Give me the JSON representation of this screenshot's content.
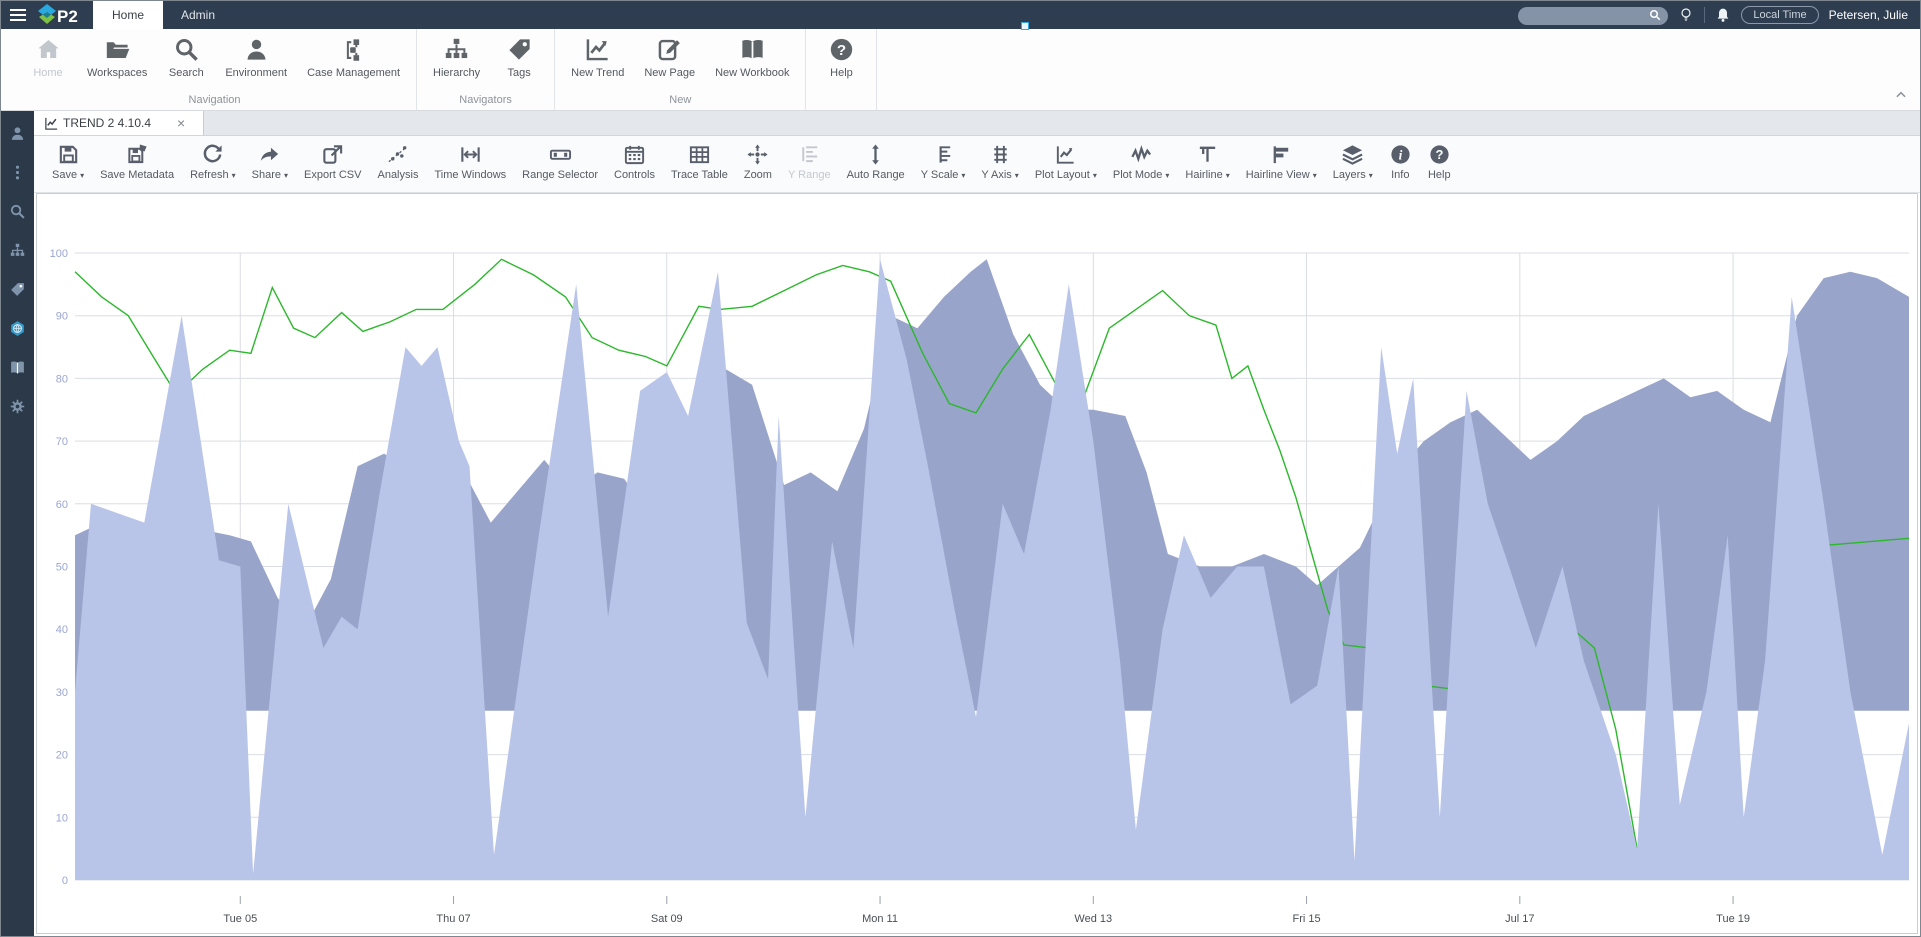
{
  "topbar": {
    "tabs": [
      "Home",
      "Admin"
    ],
    "active_tab": "Home",
    "search": {
      "value": "",
      "placeholder": ""
    },
    "local_time_label": "Local Time",
    "user_name": "Petersen, Julie"
  },
  "ribbon": {
    "groups": [
      {
        "label": "Navigation",
        "items": [
          {
            "label": "Home",
            "icon": "home",
            "disabled": true
          },
          {
            "label": "Workspaces",
            "icon": "folder"
          },
          {
            "label": "Search",
            "icon": "search"
          },
          {
            "label": "Environment",
            "icon": "person"
          },
          {
            "label": "Case Management",
            "icon": "casemgmt"
          }
        ]
      },
      {
        "label": "Navigators",
        "items": [
          {
            "label": "Hierarchy",
            "icon": "hierarchy"
          },
          {
            "label": "Tags",
            "icon": "tag"
          }
        ]
      },
      {
        "label": "New",
        "items": [
          {
            "label": "New Trend",
            "icon": "trend"
          },
          {
            "label": "New Page",
            "icon": "newpage"
          },
          {
            "label": "New Workbook",
            "icon": "book"
          }
        ]
      },
      {
        "label": "",
        "items": [
          {
            "label": "Help",
            "icon": "help"
          }
        ]
      }
    ]
  },
  "sidebar": {
    "icons": [
      "person",
      "kebab",
      "search",
      "hierarchy",
      "tag",
      "hexglobe",
      "book",
      "gear"
    ]
  },
  "document_tab": {
    "title": "TREND 2 4.10.4",
    "close_label": "×"
  },
  "trend_toolbar": {
    "items": [
      {
        "label": "Save",
        "icon": "save",
        "caret": true
      },
      {
        "label": "Save Metadata",
        "icon": "savemeta"
      },
      {
        "label": "Refresh",
        "icon": "refresh",
        "caret": true
      },
      {
        "label": "Share",
        "icon": "share",
        "caret": true
      },
      {
        "label": "Export CSV",
        "icon": "export"
      },
      {
        "label": "Analysis",
        "icon": "analysis"
      },
      {
        "label": "Time Windows",
        "icon": "timewin"
      },
      {
        "label": "Range Selector",
        "icon": "rangesel"
      },
      {
        "label": "Controls",
        "icon": "controls"
      },
      {
        "label": "Trace Table",
        "icon": "tracetable"
      },
      {
        "label": "Zoom",
        "icon": "zoomx"
      },
      {
        "label": "Y Range",
        "icon": "yrange",
        "disabled": true
      },
      {
        "label": "Auto Range",
        "icon": "autorange"
      },
      {
        "label": "Y Scale",
        "icon": "yscale",
        "caret": true
      },
      {
        "label": "Y Axis",
        "icon": "yaxis",
        "caret": true
      },
      {
        "label": "Plot Layout",
        "icon": "plotlayout",
        "caret": true
      },
      {
        "label": "Plot Mode",
        "icon": "plotmode",
        "caret": true
      },
      {
        "label": "Hairline",
        "icon": "hairline",
        "caret": true
      },
      {
        "label": "Hairline View",
        "icon": "hairlineview",
        "caret": true
      },
      {
        "label": "Layers",
        "icon": "layers",
        "caret": true
      },
      {
        "label": "Info",
        "icon": "info"
      },
      {
        "label": "Help",
        "icon": "help"
      }
    ]
  },
  "chart_data": {
    "type": "area",
    "x_axis": {
      "domain": [
        3.45,
        20.65
      ],
      "tick_days": [
        5,
        7,
        9,
        11,
        13,
        15,
        17,
        19
      ],
      "labels": [
        "Tue 05",
        "Thu 07",
        "Sat 09",
        "Mon 11",
        "Wed 13",
        "Fri 15",
        "Jul 17",
        "Tue 19"
      ]
    },
    "y_axis": {
      "min": 0,
      "max": 100,
      "step": 10,
      "ticks": [
        0,
        10,
        20,
        30,
        40,
        50,
        60,
        70,
        80,
        90,
        100
      ]
    },
    "grid": true,
    "legend": "none",
    "series": [
      {
        "name": "band-area",
        "type": "area",
        "color": "#98a4c9",
        "baseline": 27,
        "points": [
          [
            3.45,
            55
          ],
          [
            3.7,
            57
          ],
          [
            4.0,
            56
          ],
          [
            4.3,
            55
          ],
          [
            4.6,
            56
          ],
          [
            4.9,
            55
          ],
          [
            5.1,
            54
          ],
          [
            5.35,
            45
          ],
          [
            5.6,
            40
          ],
          [
            5.85,
            48
          ],
          [
            6.1,
            66
          ],
          [
            6.35,
            68
          ],
          [
            6.6,
            65
          ],
          [
            6.85,
            62
          ],
          [
            7.1,
            65
          ],
          [
            7.35,
            57
          ],
          [
            7.6,
            62
          ],
          [
            7.85,
            67
          ],
          [
            8.1,
            62
          ],
          [
            8.35,
            65
          ],
          [
            8.6,
            64
          ],
          [
            8.85,
            58
          ],
          [
            9.05,
            62
          ],
          [
            9.3,
            80
          ],
          [
            9.55,
            81.5
          ],
          [
            9.8,
            79
          ],
          [
            10.1,
            63
          ],
          [
            10.35,
            65
          ],
          [
            10.6,
            62
          ],
          [
            10.85,
            72
          ],
          [
            11.1,
            90
          ],
          [
            11.35,
            88
          ],
          [
            11.6,
            93
          ],
          [
            11.85,
            97
          ],
          [
            12.0,
            99
          ],
          [
            12.25,
            87
          ],
          [
            12.5,
            79
          ],
          [
            12.75,
            75
          ],
          [
            13.0,
            75
          ],
          [
            13.3,
            74
          ],
          [
            13.5,
            65
          ],
          [
            13.7,
            52
          ],
          [
            14.0,
            50
          ],
          [
            14.3,
            50
          ],
          [
            14.6,
            52
          ],
          [
            14.9,
            50
          ],
          [
            15.1,
            47
          ],
          [
            15.3,
            50
          ],
          [
            15.5,
            53
          ],
          [
            15.7,
            60
          ],
          [
            15.9,
            66
          ],
          [
            16.1,
            70
          ],
          [
            16.35,
            73
          ],
          [
            16.6,
            75
          ],
          [
            16.85,
            71
          ],
          [
            17.1,
            67
          ],
          [
            17.35,
            70
          ],
          [
            17.6,
            74
          ],
          [
            17.85,
            76
          ],
          [
            18.1,
            78
          ],
          [
            18.35,
            80
          ],
          [
            18.6,
            77
          ],
          [
            18.85,
            78
          ],
          [
            19.1,
            75
          ],
          [
            19.35,
            73
          ],
          [
            19.6,
            90
          ],
          [
            19.85,
            96
          ],
          [
            20.1,
            97
          ],
          [
            20.35,
            96
          ],
          [
            20.65,
            93
          ]
        ]
      },
      {
        "name": "green-line",
        "type": "line",
        "color": "#2cb82c",
        "width": 1.4,
        "segments": [
          [
            [
              3.45,
              97
            ],
            [
              3.7,
              93
            ],
            [
              3.95,
              90
            ],
            [
              4.2,
              83
            ],
            [
              4.4,
              77.5
            ],
            [
              4.65,
              81.5
            ],
            [
              4.9,
              84.5
            ],
            [
              5.1,
              84
            ],
            [
              5.3,
              94.5
            ],
            [
              5.5,
              88
            ],
            [
              5.7,
              86.5
            ],
            [
              5.95,
              90.5
            ],
            [
              6.15,
              87.5
            ],
            [
              6.4,
              89
            ],
            [
              6.65,
              91
            ],
            [
              6.9,
              91
            ],
            [
              7.2,
              95
            ],
            [
              7.45,
              99
            ],
            [
              7.75,
              96.5
            ],
            [
              8.05,
              93
            ],
            [
              8.3,
              86.5
            ],
            [
              8.55,
              84.5
            ],
            [
              8.8,
              83.5
            ],
            [
              9.0,
              82
            ],
            [
              9.3,
              91.5
            ],
            [
              9.5,
              91
            ],
            [
              9.8,
              91.5
            ],
            [
              10.1,
              94
            ],
            [
              10.4,
              96.5
            ],
            [
              10.65,
              98
            ],
            [
              10.9,
              97
            ],
            [
              11.1,
              95.5
            ],
            [
              11.4,
              84
            ],
            [
              11.65,
              76
            ],
            [
              11.9,
              74.5
            ],
            [
              12.15,
              81.5
            ],
            [
              12.4,
              87
            ],
            [
              12.65,
              79
            ],
            [
              12.9,
              76.5
            ],
            [
              13.15,
              88
            ],
            [
              13.4,
              91
            ],
            [
              13.65,
              94
            ],
            [
              13.9,
              90
            ],
            [
              14.15,
              88.5
            ],
            [
              14.3,
              80
            ],
            [
              14.45,
              82
            ],
            [
              14.6,
              75
            ],
            [
              14.75,
              68.5
            ],
            [
              14.9,
              61
            ],
            [
              15.05,
              52
            ],
            [
              15.2,
              43
            ],
            [
              15.35,
              37.5
            ],
            [
              15.6,
              37
            ],
            [
              15.85,
              31.5
            ],
            [
              16.1,
              31
            ],
            [
              16.35,
              30.5
            ],
            [
              16.6,
              40.5
            ],
            [
              16.85,
              37
            ],
            [
              17.1,
              31
            ],
            [
              17.3,
              31.5
            ],
            [
              17.5,
              40
            ],
            [
              17.7,
              37
            ],
            [
              17.9,
              24
            ],
            [
              18.1,
              5
            ],
            [
              18.2,
              5.5
            ]
          ],
          [
            [
              19.6,
              53
            ],
            [
              20.65,
              54.5
            ]
          ]
        ]
      },
      {
        "name": "spiky-area",
        "type": "area",
        "color": "#b9c4e9",
        "baseline": 0,
        "points": [
          [
            3.45,
            30
          ],
          [
            3.6,
            60
          ],
          [
            4.1,
            57
          ],
          [
            4.45,
            90
          ],
          [
            4.8,
            51
          ],
          [
            5.0,
            50
          ],
          [
            5.12,
            1
          ],
          [
            5.45,
            60
          ],
          [
            5.78,
            37
          ],
          [
            5.95,
            42
          ],
          [
            6.1,
            40
          ],
          [
            6.3,
            61
          ],
          [
            6.55,
            85
          ],
          [
            6.7,
            82
          ],
          [
            6.85,
            85
          ],
          [
            7.05,
            70
          ],
          [
            7.15,
            66
          ],
          [
            7.38,
            4
          ],
          [
            7.8,
            55
          ],
          [
            8.15,
            95
          ],
          [
            8.45,
            42
          ],
          [
            8.75,
            78
          ],
          [
            9.0,
            81
          ],
          [
            9.2,
            74
          ],
          [
            9.48,
            97
          ],
          [
            9.75,
            41
          ],
          [
            9.95,
            32
          ],
          [
            10.05,
            74
          ],
          [
            10.3,
            10
          ],
          [
            10.55,
            54
          ],
          [
            10.75,
            37
          ],
          [
            11.0,
            99
          ],
          [
            11.25,
            83
          ],
          [
            11.45,
            66
          ],
          [
            11.7,
            43
          ],
          [
            11.9,
            26
          ],
          [
            12.15,
            60
          ],
          [
            12.35,
            52
          ],
          [
            12.6,
            75
          ],
          [
            12.77,
            95
          ],
          [
            13.0,
            70
          ],
          [
            13.25,
            35
          ],
          [
            13.4,
            8
          ],
          [
            13.65,
            40
          ],
          [
            13.85,
            55
          ],
          [
            14.1,
            45
          ],
          [
            14.35,
            50
          ],
          [
            14.6,
            50
          ],
          [
            14.85,
            28
          ],
          [
            15.1,
            31
          ],
          [
            15.3,
            50
          ],
          [
            15.45,
            3
          ],
          [
            15.7,
            85
          ],
          [
            15.85,
            68
          ],
          [
            16.0,
            80
          ],
          [
            16.25,
            10
          ],
          [
            16.5,
            78
          ],
          [
            16.7,
            60
          ],
          [
            16.9,
            50
          ],
          [
            17.15,
            37
          ],
          [
            17.4,
            50
          ],
          [
            17.6,
            35
          ],
          [
            17.9,
            20
          ],
          [
            18.1,
            5
          ],
          [
            18.3,
            60
          ],
          [
            18.5,
            12
          ],
          [
            18.75,
            30
          ],
          [
            18.95,
            55
          ],
          [
            19.1,
            10
          ],
          [
            19.3,
            35
          ],
          [
            19.55,
            93
          ],
          [
            19.85,
            60
          ],
          [
            20.1,
            30
          ],
          [
            20.4,
            4
          ],
          [
            20.65,
            25
          ]
        ]
      }
    ]
  }
}
